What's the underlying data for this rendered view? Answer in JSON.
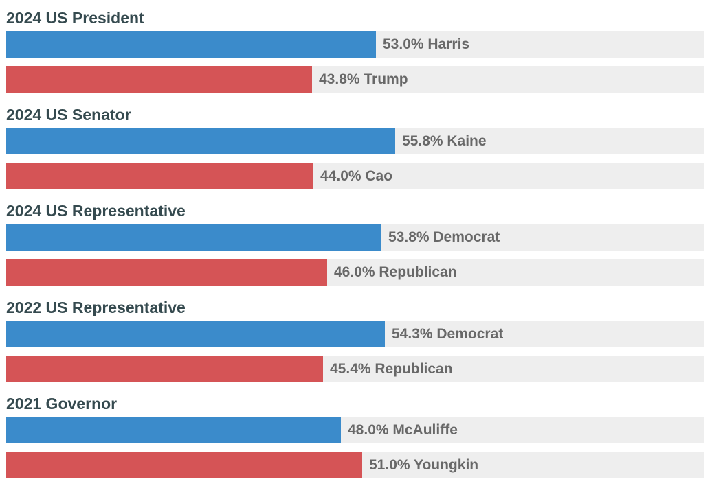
{
  "colors": {
    "democrat": "#3b8bcb",
    "republican": "#d55456",
    "track": "#eeeeee",
    "title_text": "#354a4f",
    "label_text": "#686868"
  },
  "chart_data": {
    "type": "bar",
    "orientation": "horizontal",
    "xlim": [
      0,
      100
    ],
    "grid": false,
    "races": [
      {
        "title": "2024 US President",
        "bars": [
          {
            "value": 53.0,
            "label": "53.0% Harris",
            "party": "democrat"
          },
          {
            "value": 43.8,
            "label": "43.8% Trump",
            "party": "republican"
          }
        ]
      },
      {
        "title": "2024 US Senator",
        "bars": [
          {
            "value": 55.8,
            "label": "55.8% Kaine",
            "party": "democrat"
          },
          {
            "value": 44.0,
            "label": "44.0% Cao",
            "party": "republican"
          }
        ]
      },
      {
        "title": "2024 US Representative",
        "bars": [
          {
            "value": 53.8,
            "label": "53.8% Democrat",
            "party": "democrat"
          },
          {
            "value": 46.0,
            "label": "46.0% Republican",
            "party": "republican"
          }
        ]
      },
      {
        "title": "2022 US Representative",
        "bars": [
          {
            "value": 54.3,
            "label": "54.3% Democrat",
            "party": "democrat"
          },
          {
            "value": 45.4,
            "label": "45.4% Republican",
            "party": "republican"
          }
        ]
      },
      {
        "title": "2021 Governor",
        "bars": [
          {
            "value": 48.0,
            "label": "48.0% McAuliffe",
            "party": "democrat"
          },
          {
            "value": 51.0,
            "label": "51.0% Youngkin",
            "party": "republican"
          }
        ]
      }
    ]
  }
}
